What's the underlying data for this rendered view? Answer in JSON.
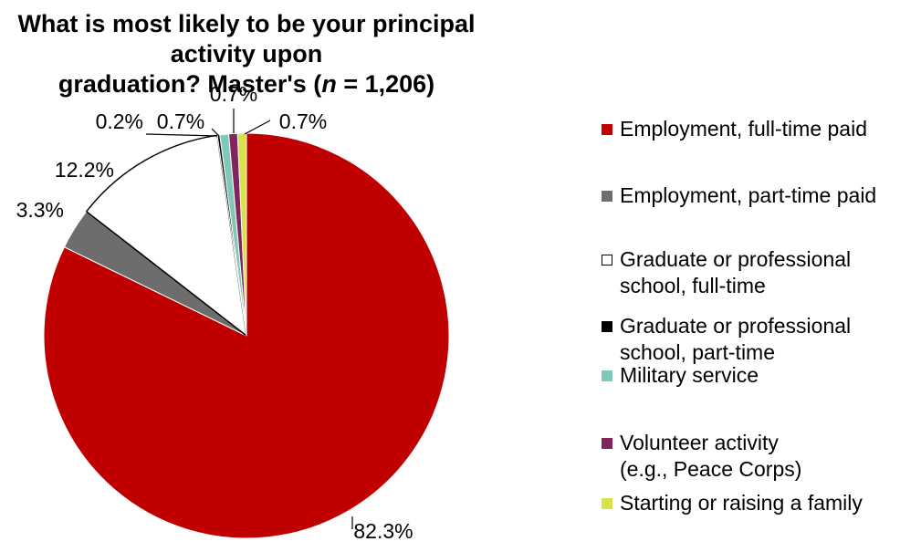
{
  "title": {
    "line1": "What is most likely to be your principal activity upon",
    "line2_prefix": "graduation? Master's (",
    "line2_n": "n",
    "line2_suffix": " = 1,206)"
  },
  "chart_data": {
    "type": "pie",
    "title": "What is most likely to be your principal activity upon graduation? Master's (n = 1,206)",
    "start": "12 o'clock",
    "direction": "clockwise",
    "legend_position": "right",
    "slices": [
      {
        "label": "Employment, full-time paid",
        "value": 82.3,
        "value_label": "82.3%",
        "color": "#c00000"
      },
      {
        "label": "Employment, part-time paid",
        "value": 3.3,
        "value_label": "3.3%",
        "color": "#6d6d6d"
      },
      {
        "label": "Graduate or professional\nschool, full-time",
        "value": 12.2,
        "value_label": "12.2%",
        "color": "#ffffff"
      },
      {
        "label": "Graduate or professional\nschool, part-time",
        "value": 0.2,
        "value_label": "0.2%",
        "color": "#000000"
      },
      {
        "label": "Military service",
        "value": 0.7,
        "value_label": "0.7%",
        "color": "#7fc9b8"
      },
      {
        "label": "Volunteer activity\n(e.g., Peace Corps)",
        "value": 0.7,
        "value_label": "0.7%",
        "color": "#84245e"
      },
      {
        "label": "Starting or raising a family",
        "value": 0.7,
        "value_label": "0.7%",
        "color": "#d8e04a"
      }
    ]
  }
}
